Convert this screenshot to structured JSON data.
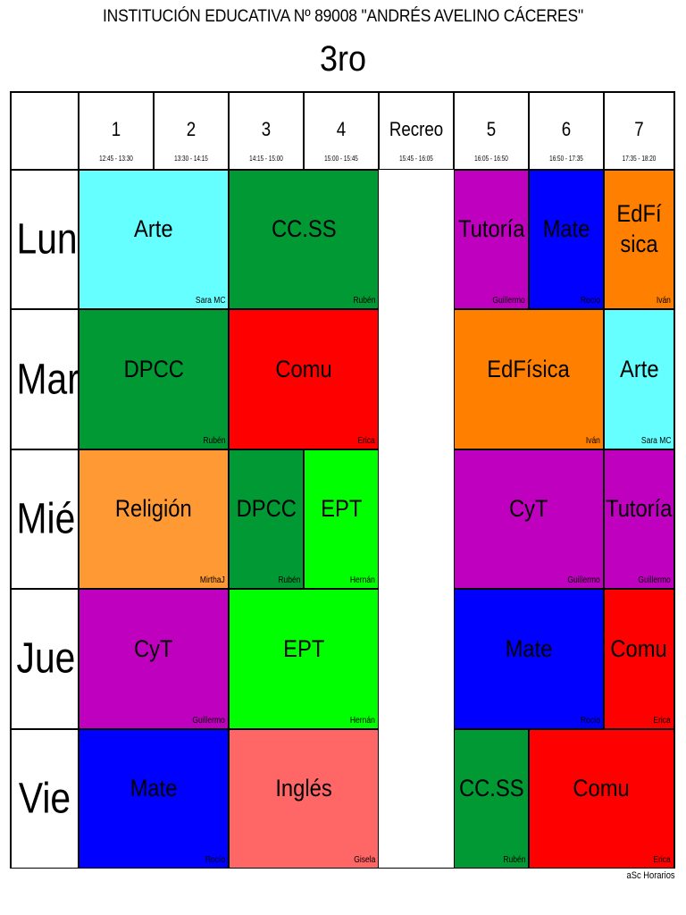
{
  "header": {
    "school": "INSTITUCIÓN EDUCATIVA Nº 89008 \"ANDRÉS AVELINO CÁCERES\"",
    "class_name": "3ro"
  },
  "periods": [
    {
      "label": "1",
      "time": "12:45 - 13:30"
    },
    {
      "label": "2",
      "time": "13:30 - 14:15"
    },
    {
      "label": "3",
      "time": "14:15 - 15:00"
    },
    {
      "label": "4",
      "time": "15:00 - 15:45"
    },
    {
      "label": "Recreo",
      "time": "15:45 - 16:05"
    },
    {
      "label": "5",
      "time": "16:05 - 16:50"
    },
    {
      "label": "6",
      "time": "16:50 - 17:35"
    },
    {
      "label": "7",
      "time": "17:35 - 18:20"
    }
  ],
  "days": [
    "Lun",
    "Mar",
    "Mié",
    "Jue",
    "Vie"
  ],
  "lessons": [
    {
      "day": 0,
      "start": 0,
      "span": 2,
      "subject": "Arte",
      "teacher": "Sara MC",
      "color": "#66ffff"
    },
    {
      "day": 0,
      "start": 2,
      "span": 2,
      "subject": "CC.SS",
      "teacher": "Rubén",
      "color": "#009933"
    },
    {
      "day": 0,
      "start": 5,
      "span": 1,
      "subject": "Tutoría",
      "teacher": "Guillermo",
      "color": "#bf00bf"
    },
    {
      "day": 0,
      "start": 6,
      "span": 1,
      "subject": "Mate",
      "teacher": "Rocío",
      "color": "#0000ff"
    },
    {
      "day": 0,
      "start": 7,
      "span": 1,
      "subject": "EdFísica",
      "teacher": "Iván",
      "color": "#ff8000"
    },
    {
      "day": 1,
      "start": 0,
      "span": 2,
      "subject": "DPCC",
      "teacher": "Rubén",
      "color": "#009933"
    },
    {
      "day": 1,
      "start": 2,
      "span": 2,
      "subject": "Comu",
      "teacher": "Erica",
      "color": "#ff0000"
    },
    {
      "day": 1,
      "start": 5,
      "span": 2,
      "subject": "EdFísica",
      "teacher": "Iván",
      "color": "#ff8000"
    },
    {
      "day": 1,
      "start": 7,
      "span": 1,
      "subject": "Arte",
      "teacher": "Sara MC",
      "color": "#66ffff"
    },
    {
      "day": 2,
      "start": 0,
      "span": 2,
      "subject": "Religión",
      "teacher": "MirthaJ",
      "color": "#ff9933"
    },
    {
      "day": 2,
      "start": 2,
      "span": 1,
      "subject": "DPCC",
      "teacher": "Rubén",
      "color": "#009933"
    },
    {
      "day": 2,
      "start": 3,
      "span": 1,
      "subject": "EPT",
      "teacher": "Hernán",
      "color": "#00ff00"
    },
    {
      "day": 2,
      "start": 5,
      "span": 2,
      "subject": "CyT",
      "teacher": "Guillermo",
      "color": "#bf00bf"
    },
    {
      "day": 2,
      "start": 7,
      "span": 1,
      "subject": "Tutoría",
      "teacher": "Guillermo",
      "color": "#bf00bf"
    },
    {
      "day": 3,
      "start": 0,
      "span": 2,
      "subject": "CyT",
      "teacher": "Guillermo",
      "color": "#bf00bf"
    },
    {
      "day": 3,
      "start": 2,
      "span": 2,
      "subject": "EPT",
      "teacher": "Hernán",
      "color": "#00ff00"
    },
    {
      "day": 3,
      "start": 5,
      "span": 2,
      "subject": "Mate",
      "teacher": "Rocío",
      "color": "#0000ff"
    },
    {
      "day": 3,
      "start": 7,
      "span": 1,
      "subject": "Comu",
      "teacher": "Erica",
      "color": "#ff0000"
    },
    {
      "day": 4,
      "start": 0,
      "span": 2,
      "subject": "Mate",
      "teacher": "Rocío",
      "color": "#0000ff"
    },
    {
      "day": 4,
      "start": 2,
      "span": 2,
      "subject": "Inglés",
      "teacher": "Gisela",
      "color": "#ff6666"
    },
    {
      "day": 4,
      "start": 5,
      "span": 1,
      "subject": "CC.SS",
      "teacher": "Rubén",
      "color": "#009933"
    },
    {
      "day": 4,
      "start": 6,
      "span": 2,
      "subject": "Comu",
      "teacher": "Erica",
      "color": "#ff0000"
    }
  ],
  "footer": "aSc Horarios"
}
